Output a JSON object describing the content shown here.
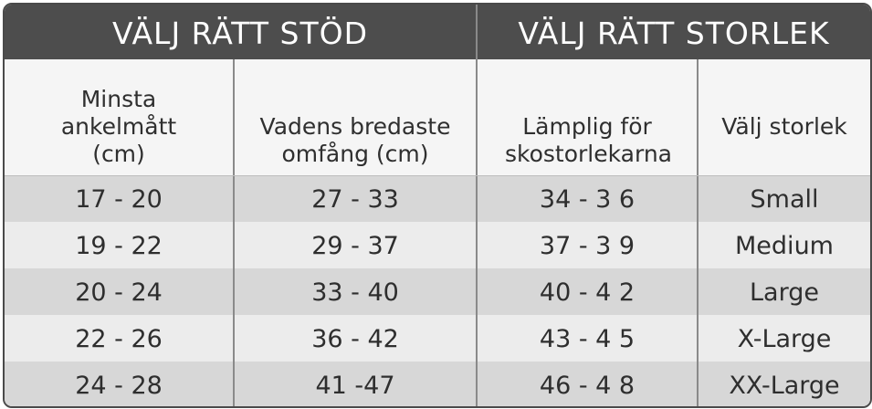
{
  "header": {
    "left_title": "VÄLJ RÄTT STÖD",
    "right_title": "VÄLJ RÄTT STORLEK"
  },
  "columns": [
    "Minsta ankelmått (cm)",
    "Vadens bredaste omfång (cm)",
    "Lämplig för skostorlekarna",
    "Välj storlek"
  ],
  "rows": [
    [
      "17 - 20",
      "27 - 33",
      "34 - 3 6",
      "Small"
    ],
    [
      "19 - 22",
      "29 - 37",
      "37 - 3 9",
      "Medium"
    ],
    [
      "20 - 24",
      "33 - 40",
      "40 - 4 2",
      "Large"
    ],
    [
      "22 - 26",
      "36 - 42",
      "43 - 4 5",
      "X-Large"
    ],
    [
      "24 - 28",
      "41 -47",
      "46 - 4 8",
      "XX-Large"
    ]
  ]
}
